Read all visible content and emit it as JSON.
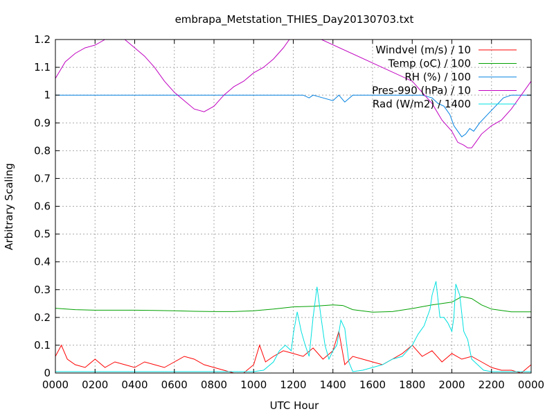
{
  "chart_data": {
    "type": "line",
    "title": "embrapa_Metstation_THIES_Day20130703.txt",
    "xlabel": "UTC Hour",
    "ylabel": "Arbitrary Scaling",
    "xlim": [
      0,
      24
    ],
    "ylim": [
      0,
      1.2
    ],
    "x_ticks": [
      {
        "value": 0,
        "label": "0000"
      },
      {
        "value": 2,
        "label": "0200"
      },
      {
        "value": 4,
        "label": "0400"
      },
      {
        "value": 6,
        "label": "0600"
      },
      {
        "value": 8,
        "label": "0800"
      },
      {
        "value": 10,
        "label": "1000"
      },
      {
        "value": 12,
        "label": "1200"
      },
      {
        "value": 14,
        "label": "1400"
      },
      {
        "value": 16,
        "label": "1600"
      },
      {
        "value": 18,
        "label": "1800"
      },
      {
        "value": 20,
        "label": "2000"
      },
      {
        "value": 22,
        "label": "2200"
      },
      {
        "value": 24,
        "label": "0000"
      }
    ],
    "y_ticks": [
      {
        "value": 0,
        "label": "0"
      },
      {
        "value": 0.1,
        "label": "0.1"
      },
      {
        "value": 0.2,
        "label": "0.2"
      },
      {
        "value": 0.3,
        "label": "0.3"
      },
      {
        "value": 0.4,
        "label": "0.4"
      },
      {
        "value": 0.5,
        "label": "0.5"
      },
      {
        "value": 0.6,
        "label": "0.6"
      },
      {
        "value": 0.7,
        "label": "0.7"
      },
      {
        "value": 0.8,
        "label": "0.8"
      },
      {
        "value": 0.9,
        "label": "0.9"
      },
      {
        "value": 1.0,
        "label": "1"
      },
      {
        "value": 1.1,
        "label": "1.1"
      },
      {
        "value": 1.2,
        "label": "1.2"
      }
    ],
    "grid": true,
    "legend_position": "top-right",
    "series": [
      {
        "name": "Windvel (m/s) / 10",
        "color": "#ff0000",
        "x": [
          0,
          0.3,
          0.6,
          1,
          1.5,
          2,
          2.5,
          3,
          3.5,
          4,
          4.5,
          5,
          5.5,
          6,
          6.5,
          7,
          7.5,
          8,
          8.5,
          9,
          9.5,
          10,
          10.3,
          10.6,
          11,
          11.5,
          12,
          12.5,
          13,
          13.5,
          14,
          14.3,
          14.6,
          15,
          15.5,
          16,
          16.5,
          17,
          17.5,
          18,
          18.5,
          19,
          19.5,
          20,
          20.5,
          21,
          21.5,
          22,
          22.5,
          23,
          23.5,
          24
        ],
        "y": [
          0.06,
          0.1,
          0.05,
          0.03,
          0.02,
          0.05,
          0.02,
          0.04,
          0.03,
          0.02,
          0.04,
          0.03,
          0.02,
          0.04,
          0.06,
          0.05,
          0.03,
          0.02,
          0.01,
          0,
          0,
          0.03,
          0.1,
          0.04,
          0.06,
          0.08,
          0.07,
          0.06,
          0.09,
          0.05,
          0.08,
          0.15,
          0.03,
          0.06,
          0.05,
          0.04,
          0.03,
          0.05,
          0.07,
          0.1,
          0.06,
          0.08,
          0.04,
          0.07,
          0.05,
          0.06,
          0.04,
          0.02,
          0.01,
          0.01,
          0,
          0.03
        ]
      },
      {
        "name": "Temp (oC) / 100",
        "color": "#00a000",
        "x": [
          0,
          1,
          2,
          3,
          4,
          5,
          6,
          7,
          8,
          9,
          10,
          11,
          12,
          13,
          14,
          14.5,
          15,
          16,
          17,
          18,
          19,
          19.5,
          20,
          20.5,
          21,
          21.5,
          22,
          23,
          24
        ],
        "y": [
          0.233,
          0.228,
          0.226,
          0.226,
          0.226,
          0.225,
          0.224,
          0.222,
          0.221,
          0.221,
          0.224,
          0.23,
          0.238,
          0.24,
          0.245,
          0.243,
          0.228,
          0.219,
          0.221,
          0.232,
          0.245,
          0.25,
          0.255,
          0.275,
          0.268,
          0.245,
          0.23,
          0.22,
          0.22
        ]
      },
      {
        "name": "RH (%) / 100",
        "color": "#0080e0",
        "x": [
          0,
          12,
          12.5,
          12.8,
          13,
          13.5,
          14,
          14.3,
          14.6,
          15,
          18.5,
          19,
          19.3,
          19.6,
          19.9,
          20.1,
          20.3,
          20.5,
          20.7,
          20.9,
          21.1,
          21.4,
          21.8,
          22.2,
          22.6,
          23,
          24
        ],
        "y": [
          1,
          1,
          1,
          0.99,
          1,
          0.99,
          0.98,
          1,
          0.975,
          1,
          1,
          0.99,
          0.97,
          0.96,
          0.93,
          0.89,
          0.87,
          0.85,
          0.86,
          0.88,
          0.87,
          0.9,
          0.93,
          0.96,
          0.99,
          1,
          1
        ]
      },
      {
        "name": "Pres-990 (hPa) / 10",
        "color": "#c000c0",
        "x": [
          0,
          0.5,
          1,
          1.5,
          2,
          2.5,
          3,
          3.5,
          4,
          4.5,
          5,
          5.5,
          6,
          6.5,
          7,
          7.5,
          8,
          8.5,
          9,
          9.5,
          10,
          10.5,
          11,
          11.5,
          11.8,
          12,
          12.2,
          18,
          18.5,
          19,
          19.5,
          20,
          20.3,
          20.6,
          20.8,
          21,
          21.2,
          21.5,
          22,
          22.5,
          23,
          23.5,
          24
        ],
        "y": [
          1.06,
          1.12,
          1.15,
          1.17,
          1.18,
          1.2,
          1.22,
          1.2,
          1.17,
          1.14,
          1.1,
          1.05,
          1.01,
          0.98,
          0.95,
          0.94,
          0.96,
          1.0,
          1.03,
          1.05,
          1.08,
          1.1,
          1.13,
          1.17,
          1.2,
          1.22,
          1.24,
          1.05,
          1.01,
          0.97,
          0.91,
          0.87,
          0.83,
          0.82,
          0.81,
          0.81,
          0.83,
          0.86,
          0.89,
          0.91,
          0.95,
          1.0,
          1.05
        ]
      },
      {
        "name": "Rad (W/m2) / 1400",
        "color": "#00e0e0",
        "x": [
          0,
          10,
          10.5,
          11,
          11.3,
          11.6,
          11.9,
          12,
          12.2,
          12.4,
          12.6,
          12.8,
          13,
          13.2,
          13.4,
          13.6,
          13.8,
          14,
          14.2,
          14.4,
          14.6,
          14.8,
          15,
          15.5,
          16,
          16.5,
          17,
          17.5,
          18,
          18.3,
          18.6,
          18.9,
          19,
          19.2,
          19.4,
          19.6,
          19.8,
          20,
          20.1,
          20.2,
          20.4,
          20.6,
          20.8,
          21,
          21.3,
          21.6,
          22,
          22.5,
          24
        ],
        "y": [
          0.005,
          0.005,
          0.01,
          0.04,
          0.08,
          0.1,
          0.08,
          0.14,
          0.22,
          0.15,
          0.1,
          0.06,
          0.2,
          0.31,
          0.2,
          0.1,
          0.05,
          0.08,
          0.1,
          0.19,
          0.16,
          0.04,
          0.005,
          0.01,
          0.02,
          0.03,
          0.05,
          0.06,
          0.1,
          0.14,
          0.17,
          0.23,
          0.28,
          0.33,
          0.2,
          0.2,
          0.18,
          0.15,
          0.2,
          0.32,
          0.28,
          0.15,
          0.12,
          0.05,
          0.03,
          0.01,
          0.005,
          0.005,
          0.005
        ]
      }
    ]
  }
}
